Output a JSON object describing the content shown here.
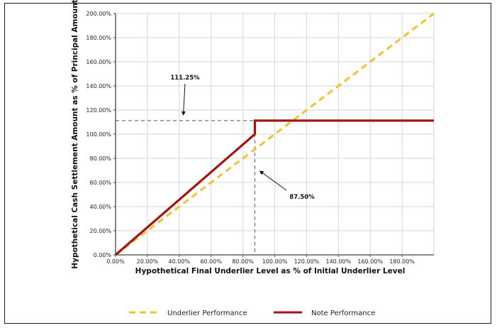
{
  "chart_data": {
    "type": "line",
    "xlabel": "Hypothetical Final Underlier Level as % of Initial Underlier Level",
    "ylabel": "Hypothetical Cash Settlement Amount as % of Principal Amount",
    "xlim": [
      0,
      200
    ],
    "ylim": [
      0,
      200
    ],
    "x_ticks": [
      "0.00%",
      "20.00%",
      "40.00%",
      "60.00%",
      "80.00%",
      "100.00%",
      "120.00%",
      "140.00%",
      "160.00%",
      "180.00%"
    ],
    "y_ticks": [
      "0.00%",
      "20.00%",
      "40.00%",
      "60.00%",
      "80.00%",
      "100.00%",
      "120.00%",
      "140.00%",
      "160.00%",
      "180.00%",
      "200.00%"
    ],
    "grid": true,
    "series": [
      {
        "name": "Underlier Performance",
        "color": "#f2c12e",
        "style": "dashed",
        "x": [
          0,
          200
        ],
        "y": [
          0,
          200
        ]
      },
      {
        "name": "Note Performance",
        "color": "#a31515",
        "style": "solid",
        "x": [
          0,
          87.5,
          87.5,
          200
        ],
        "y": [
          0,
          100,
          111.25,
          111.25
        ]
      }
    ],
    "reference_lines": {
      "x": 87.5,
      "y": 111.25
    },
    "annotations": [
      {
        "text": "111.25%",
        "target_x": 43,
        "target_y": 111.25
      },
      {
        "text": "87.50%",
        "target_x": 88,
        "target_y": 70
      }
    ],
    "legend_position": "bottom"
  }
}
